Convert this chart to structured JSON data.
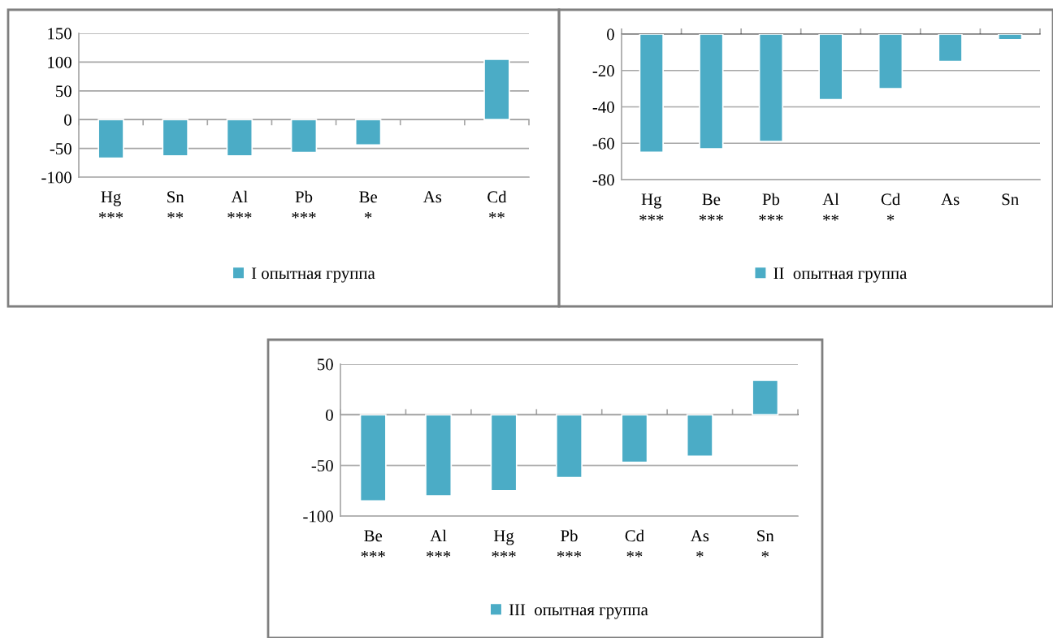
{
  "chart_data": [
    {
      "type": "bar",
      "categories": [
        "Hg\n***",
        "Sn\n**",
        "Al\n***",
        "Pb\n***",
        "Be\n*",
        "As",
        "Cd\n**"
      ],
      "series": [
        {
          "name": "I опытная группа",
          "color": "#4bacc6",
          "values": [
            -67,
            -63,
            -63,
            -57,
            -44,
            null,
            105
          ]
        }
      ],
      "ylim": [
        -100,
        150
      ],
      "yticks": [
        -100,
        -50,
        0,
        50,
        100,
        150
      ],
      "grid": "y",
      "legend": "bottom"
    },
    {
      "type": "bar",
      "categories": [
        "Hg\n***",
        "Be\n***",
        "Pb\n***",
        "Al\n**",
        "Cd\n*",
        "As",
        "Sn"
      ],
      "series": [
        {
          "name": "II  опытная группа",
          "color": "#4bacc6",
          "values": [
            -65,
            -63,
            -59,
            -36,
            -30,
            -15,
            -3
          ]
        }
      ],
      "ylim": [
        -80,
        0
      ],
      "yticks": [
        -80,
        -60,
        -40,
        -20,
        0
      ],
      "grid": "y",
      "legend": "bottom"
    },
    {
      "type": "bar",
      "categories": [
        "Be\n***",
        "Al\n***",
        "Hg\n***",
        "Pb\n***",
        "Cd\n**",
        "As\n*",
        "Sn\n*"
      ],
      "series": [
        {
          "name": "III  опытная группа",
          "color": "#4bacc6",
          "values": [
            -85,
            -80,
            -75,
            -62,
            -47,
            -41,
            34
          ]
        }
      ],
      "ylim": [
        -100,
        50
      ],
      "yticks": [
        -100,
        -50,
        0,
        50
      ],
      "grid": "y",
      "legend": "bottom"
    }
  ]
}
